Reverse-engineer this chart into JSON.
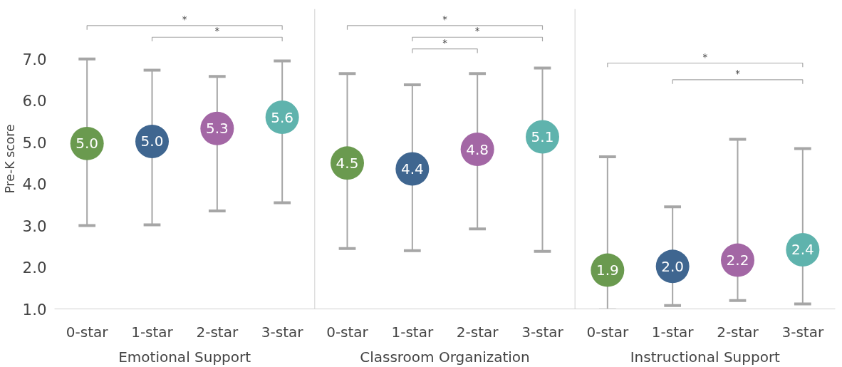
{
  "chart_data": {
    "type": "scatter",
    "ylabel": "Pre-K score",
    "categories": [
      "0-star",
      "1-star",
      "2-star",
      "3-star",
      "0-star",
      "1-star",
      "2-star",
      "3-star",
      "0-star",
      "1-star",
      "2-star",
      "3-star"
    ],
    "values": [
      4.97,
      5.02,
      5.33,
      5.6,
      4.5,
      4.36,
      4.83,
      5.13,
      1.93,
      2.02,
      2.17,
      2.42
    ],
    "value_labels": [
      "5.0",
      "5.0",
      "5.3",
      "5.6",
      "4.5",
      "4.4",
      "4.8",
      "5.1",
      "1.9",
      "2.0",
      "2.2",
      "2.4"
    ],
    "colors": [
      "#6a9a4f",
      "#3f6690",
      "#a367a5",
      "#5fb3ad",
      "#6a9a4f",
      "#3f6690",
      "#a367a5",
      "#5fb3ad",
      "#6a9a4f",
      "#3f6690",
      "#a367a5",
      "#5fb3ad"
    ],
    "errors": [
      [
        3.0,
        7.0
      ],
      [
        3.02,
        6.73
      ],
      [
        3.35,
        6.58
      ],
      [
        3.55,
        6.95
      ],
      [
        2.45,
        6.65
      ],
      [
        2.4,
        6.38
      ],
      [
        2.92,
        6.65
      ],
      [
        2.38,
        6.78
      ],
      [
        0.98,
        4.65
      ],
      [
        1.08,
        3.45
      ],
      [
        1.2,
        5.07
      ],
      [
        1.12,
        4.85
      ]
    ],
    "ylim": [
      1,
      8.2
    ],
    "yticks": [
      {
        "value": 1,
        "label": "1.0"
      },
      {
        "value": 2,
        "label": "2.0"
      },
      {
        "value": 3,
        "label": "3.0"
      },
      {
        "value": 4,
        "label": "4.0"
      },
      {
        "value": 5,
        "label": "5.0"
      },
      {
        "value": 6,
        "label": "6.0"
      },
      {
        "value": 7,
        "label": "7.0"
      }
    ],
    "marker": "circle",
    "annotations": [
      "Emotional Support",
      "Classroom Organization",
      "Instructional Support",
      "*",
      "*",
      "*",
      "*",
      "*",
      "*",
      "*"
    ]
  }
}
